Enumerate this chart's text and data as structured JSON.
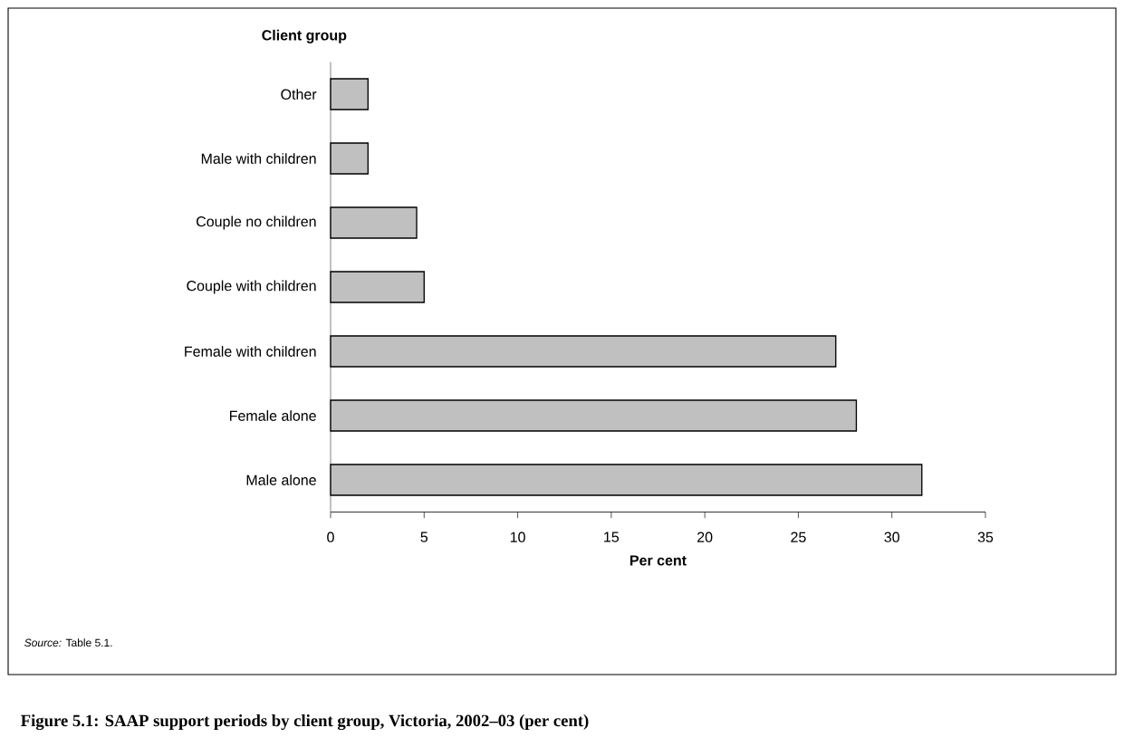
{
  "chart_data": {
    "type": "bar",
    "orientation": "horizontal",
    "title": "Figure 5.1: SAAP support periods by client group, Victoria, 2002–03 (per cent)",
    "ylabel": "Client group",
    "xlabel": "Per cent",
    "categories": [
      "Other",
      "Male with children",
      "Couple no children",
      "Couple with children",
      "Female with children",
      "Female alone",
      "Male alone"
    ],
    "values": [
      2.0,
      2.0,
      4.6,
      5.0,
      27.0,
      28.1,
      31.6
    ],
    "color": "#c0c0c0",
    "xlim": [
      0,
      35
    ],
    "xticks": [
      0,
      5,
      10,
      15,
      20,
      25,
      30,
      35
    ],
    "grid": false,
    "annotations": [
      "*Source:* Table 5.1."
    ]
  }
}
